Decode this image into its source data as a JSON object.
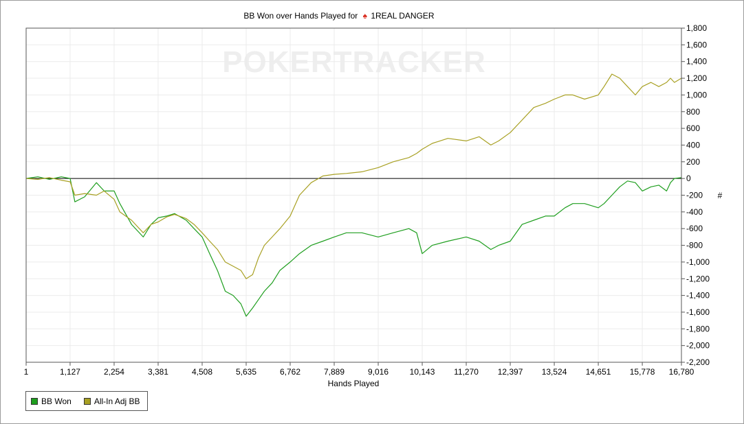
{
  "chart_data": {
    "type": "line",
    "title_prefix": "BB Won over Hands Played for",
    "player_name": "1REAL DANGER",
    "xlabel": "Hands Played",
    "ylabel": "#",
    "watermark": "POKERTRACKER",
    "xlim": [
      1,
      16780
    ],
    "ylim": [
      -2200,
      1800
    ],
    "x_ticks": [
      1,
      1127,
      2254,
      3381,
      4508,
      5635,
      6762,
      7889,
      9016,
      10143,
      11270,
      12397,
      13524,
      14651,
      15778,
      16780
    ],
    "x_tick_labels": [
      "1",
      "1,127",
      "2,254",
      "3,381",
      "4,508",
      "5,635",
      "6,762",
      "7,889",
      "9,016",
      "10,143",
      "11,270",
      "12,397",
      "13,524",
      "14,651",
      "15,778",
      "16,780"
    ],
    "y_ticks": [
      1800,
      1600,
      1400,
      1200,
      1000,
      800,
      600,
      400,
      200,
      0,
      -200,
      -400,
      -600,
      -800,
      -1000,
      -1200,
      -1400,
      -1600,
      -1800,
      -2000,
      -2200
    ],
    "y_tick_labels": [
      "1,800",
      "1,600",
      "1,400",
      "1,200",
      "1,000",
      "800",
      "600",
      "400",
      "200",
      "0",
      "-200",
      "-400",
      "-600",
      "-800",
      "-1,000",
      "-1,200",
      "-1,400",
      "-1,600",
      "-1,800",
      "-2,000",
      "-2,200"
    ],
    "grid": true,
    "legend_position": "bottom-left",
    "series": [
      {
        "name": "BB Won",
        "color": "#1e9e1e",
        "x": [
          1,
          300,
          600,
          900,
          1127,
          1250,
          1500,
          1800,
          2000,
          2254,
          2400,
          2700,
          3000,
          3200,
          3381,
          3600,
          3800,
          4100,
          4300,
          4508,
          4700,
          4900,
          5100,
          5300,
          5500,
          5635,
          5800,
          5950,
          6100,
          6300,
          6500,
          6762,
          7000,
          7300,
          7600,
          7889,
          8200,
          8600,
          9016,
          9400,
          9800,
          10000,
          10143,
          10400,
          10800,
          11270,
          11600,
          11900,
          12100,
          12397,
          12700,
          13000,
          13300,
          13524,
          13800,
          14000,
          14300,
          14651,
          14800,
          15000,
          15200,
          15400,
          15600,
          15778,
          16000,
          16200,
          16400,
          16500,
          16600,
          16780
        ],
        "values": [
          0,
          20,
          -10,
          20,
          0,
          -280,
          -220,
          -50,
          -150,
          -150,
          -300,
          -550,
          -700,
          -550,
          -470,
          -450,
          -420,
          -500,
          -600,
          -700,
          -900,
          -1100,
          -1350,
          -1400,
          -1500,
          -1650,
          -1550,
          -1450,
          -1350,
          -1250,
          -1100,
          -1000,
          -900,
          -800,
          -750,
          -700,
          -650,
          -650,
          -700,
          -650,
          -600,
          -650,
          -900,
          -800,
          -750,
          -700,
          -750,
          -850,
          -800,
          -750,
          -550,
          -500,
          -450,
          -450,
          -350,
          -300,
          -300,
          -350,
          -300,
          -200,
          -100,
          -30,
          -50,
          -150,
          -100,
          -80,
          -150,
          -50,
          0,
          10
        ]
      },
      {
        "name": "All-In Adj BB",
        "color": "#a8a022",
        "x": [
          1,
          300,
          600,
          900,
          1127,
          1250,
          1500,
          1800,
          2000,
          2254,
          2400,
          2700,
          3000,
          3200,
          3381,
          3600,
          3800,
          4100,
          4300,
          4508,
          4700,
          4900,
          5100,
          5300,
          5500,
          5635,
          5800,
          5950,
          6100,
          6300,
          6500,
          6762,
          7000,
          7300,
          7600,
          7889,
          8200,
          8600,
          9016,
          9400,
          9800,
          10000,
          10143,
          10400,
          10800,
          11270,
          11600,
          11900,
          12100,
          12397,
          12700,
          13000,
          13300,
          13524,
          13800,
          14000,
          14300,
          14651,
          14800,
          15000,
          15200,
          15400,
          15600,
          15778,
          16000,
          16200,
          16400,
          16500,
          16600,
          16780
        ],
        "values": [
          0,
          -10,
          10,
          -20,
          -40,
          -200,
          -180,
          -200,
          -150,
          -250,
          -400,
          -500,
          -650,
          -550,
          -520,
          -460,
          -430,
          -480,
          -550,
          -650,
          -750,
          -850,
          -1000,
          -1050,
          -1100,
          -1200,
          -1150,
          -950,
          -800,
          -700,
          -600,
          -450,
          -200,
          -50,
          30,
          50,
          60,
          80,
          130,
          200,
          250,
          300,
          350,
          420,
          480,
          450,
          500,
          400,
          450,
          550,
          700,
          850,
          900,
          950,
          1000,
          1000,
          950,
          1000,
          1100,
          1250,
          1200,
          1100,
          1000,
          1100,
          1150,
          1100,
          1150,
          1200,
          1150,
          1200
        ]
      }
    ]
  }
}
